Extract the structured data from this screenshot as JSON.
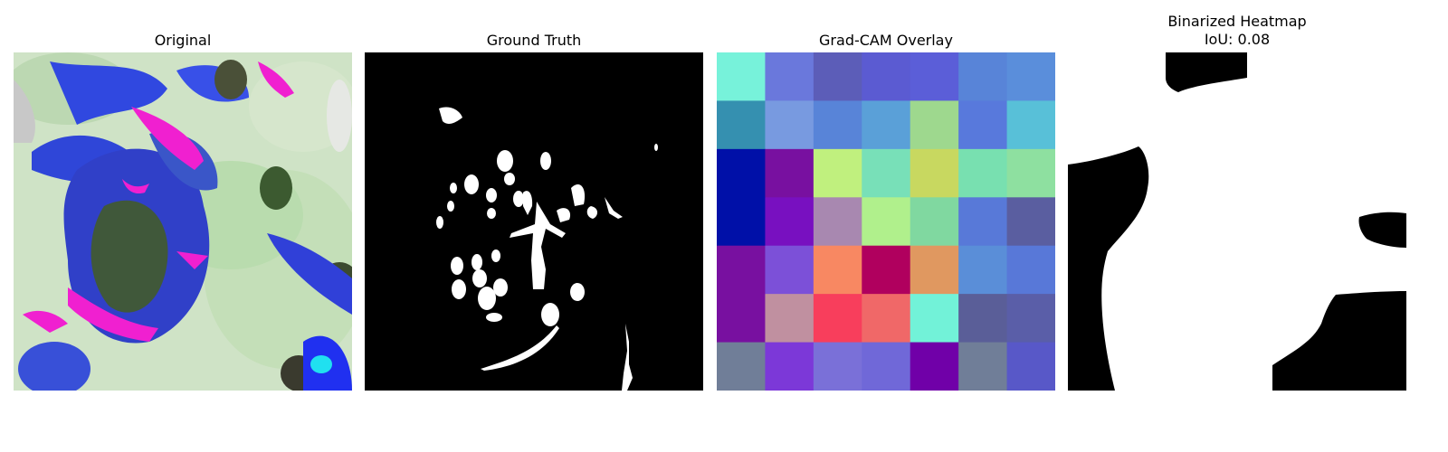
{
  "panels": [
    {
      "title": "Original"
    },
    {
      "title": "Ground Truth"
    },
    {
      "title": "Grad-CAM Overlay"
    },
    {
      "title": "Binarized Heatmap",
      "subtitle": "IoU: 0.08"
    }
  ],
  "gradcam_grid": [
    [
      "#77f2da",
      "#6a78dc",
      "#5c5db8",
      "#5b5bd2",
      "#5b5ed8",
      "#5884d8",
      "#5a8edb"
    ],
    [
      "#3590b0",
      "#789ae0",
      "#5884d8",
      "#5aa0d8",
      "#9ed88e",
      "#5879dc",
      "#58c0d8"
    ],
    [
      "#0010a8",
      "#7810a0",
      "#c0f07e",
      "#78e0b8",
      "#c8d860",
      "#78e0b0",
      "#8ee0a0"
    ],
    [
      "#0010a8",
      "#7810c0",
      "#a888b0",
      "#b0f08c",
      "#80d8a0",
      "#5879d8",
      "#5a5ea0"
    ],
    [
      "#7810a0",
      "#7c50d8",
      "#f88862",
      "#b0005e",
      "#e09860",
      "#5a8ed8",
      "#5878d8"
    ],
    [
      "#7810a0",
      "#c090a0",
      "#f83e5c",
      "#f06868",
      "#72f2d8",
      "#5a5e98",
      "#5a5ea8"
    ],
    [
      "#707e98",
      "#7c38d8",
      "#7a70d8",
      "#7068d8",
      "#7000a8",
      "#707e98",
      "#5858c8"
    ]
  ]
}
